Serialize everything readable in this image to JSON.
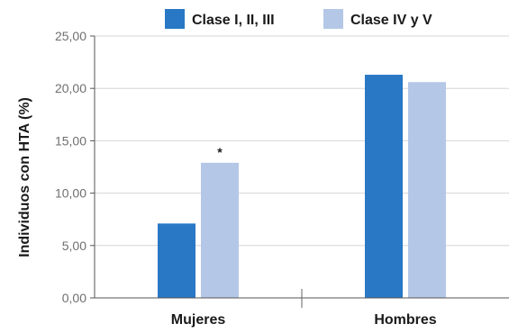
{
  "chart_data": {
    "type": "bar",
    "categories": [
      "Mujeres",
      "Hombres"
    ],
    "series": [
      {
        "name": "Clase I, II, III",
        "values": [
          7.1,
          21.3
        ],
        "color": "#2878c5"
      },
      {
        "name": "Clase IV y V",
        "values": [
          12.9,
          20.6
        ],
        "color": "#b4c7e7"
      }
    ],
    "xlabel": "",
    "ylabel": "Individuos con HTA (%)",
    "ylim": [
      0,
      25
    ],
    "yticks": [
      "0,00",
      "5,00",
      "10,00",
      "15,00",
      "20,00",
      "25,00"
    ],
    "ytick_values": [
      0,
      5,
      10,
      15,
      20,
      25
    ],
    "grid": true,
    "legend_position": "top",
    "annotations": [
      {
        "text": "*",
        "category_index": 0,
        "series_index": 1
      }
    ]
  }
}
